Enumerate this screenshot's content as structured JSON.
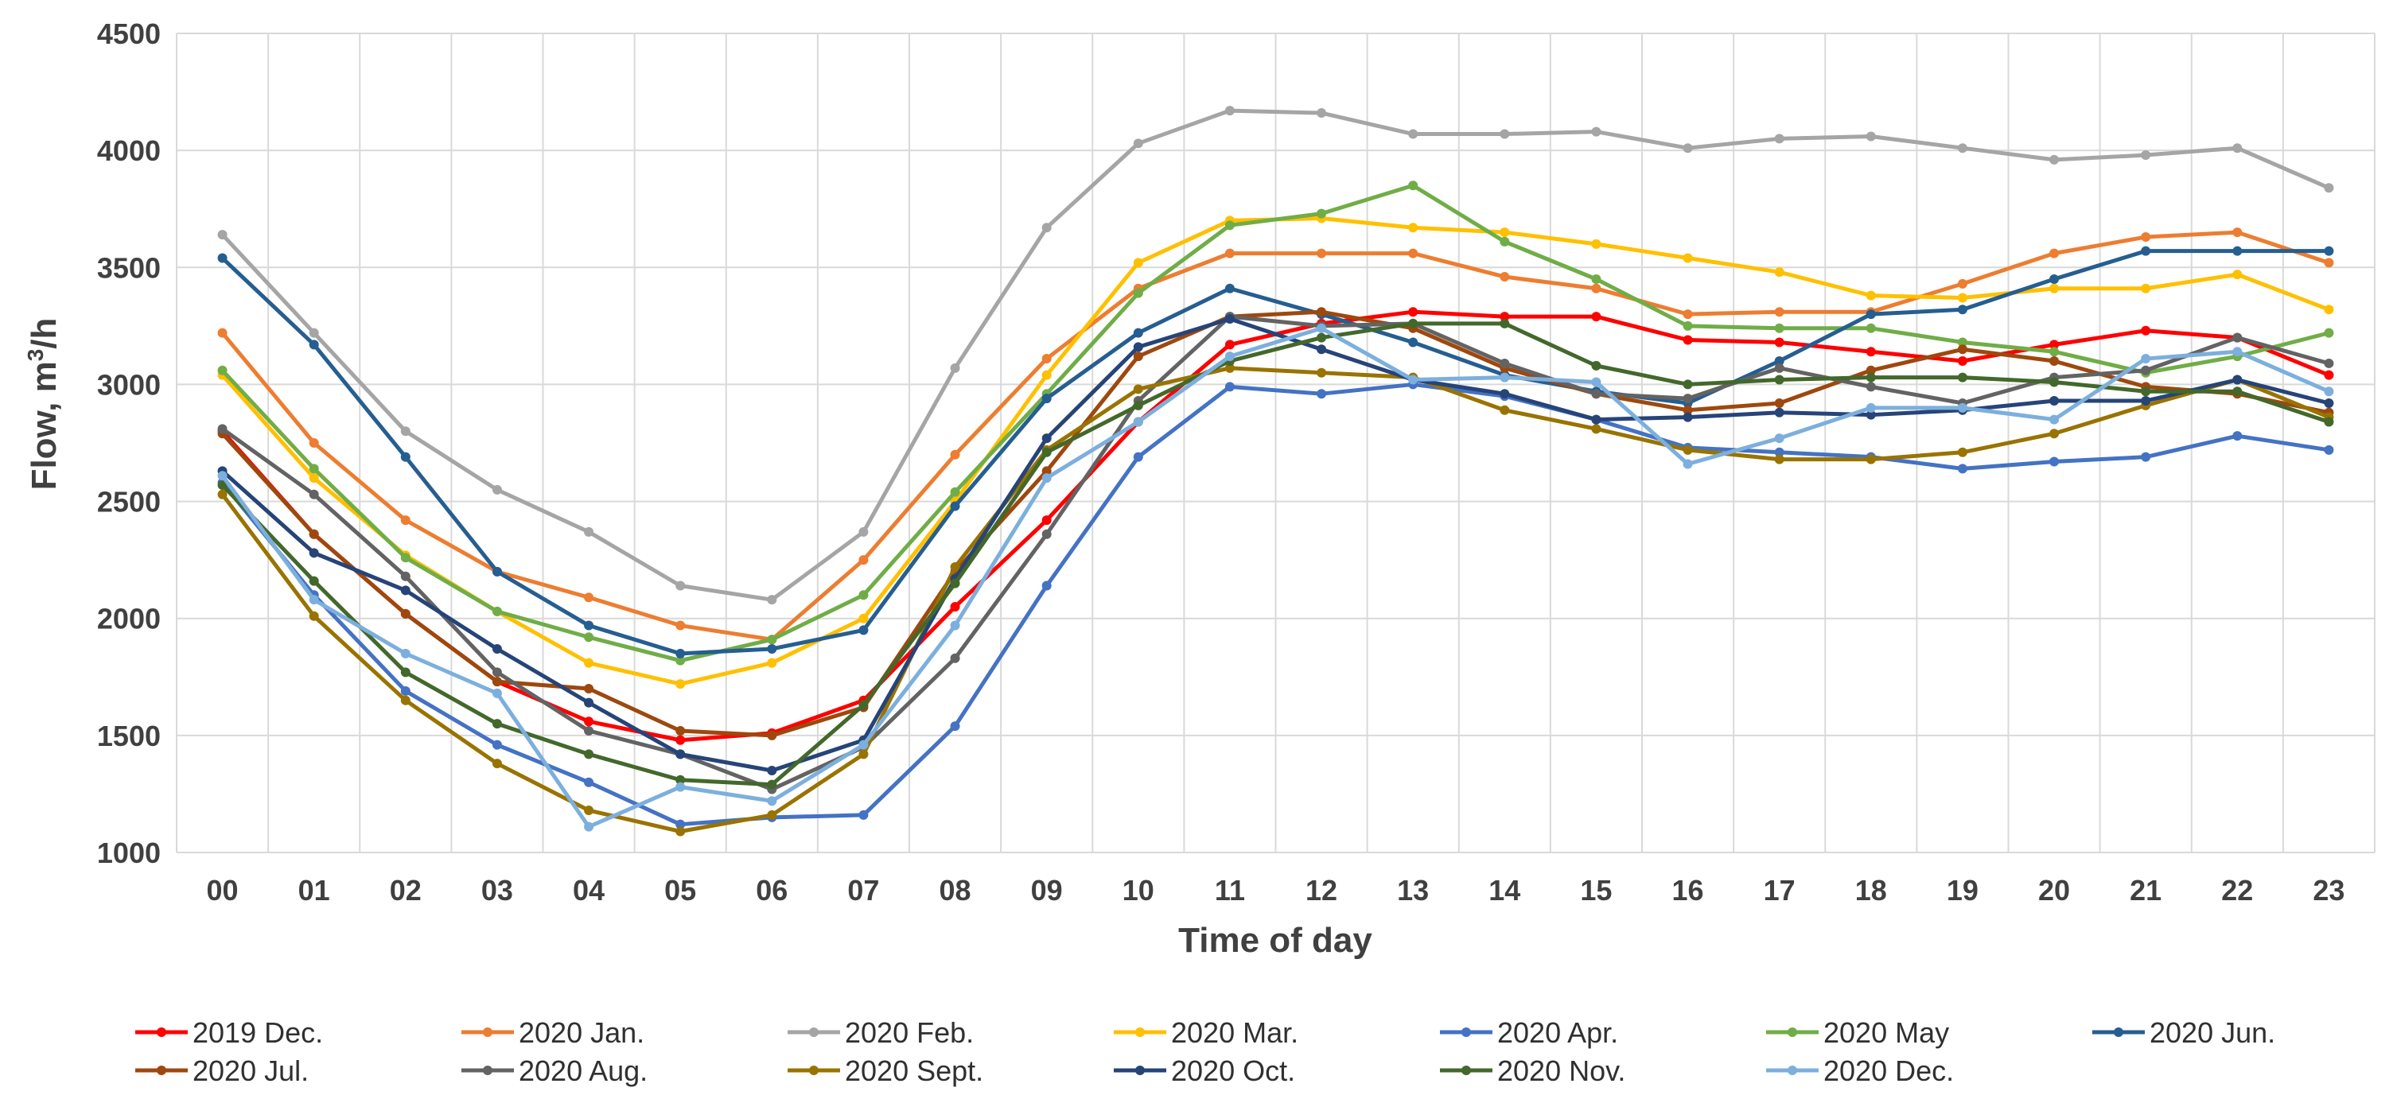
{
  "chart_data": {
    "type": "line",
    "title": "",
    "xlabel": "Time of day",
    "ylabel": "Flow, m³/h",
    "ylabel_main": "Flow, m",
    "ylabel_sup": "3",
    "ylabel_end": "/h",
    "ylim": [
      1000,
      4500
    ],
    "yticks": [
      1000,
      1500,
      2000,
      2500,
      3000,
      3500,
      4000,
      4500
    ],
    "grid": true,
    "legend_position": "bottom",
    "categories": [
      "00",
      "01",
      "02",
      "03",
      "04",
      "05",
      "06",
      "07",
      "08",
      "09",
      "10",
      "11",
      "12",
      "13",
      "14",
      "15",
      "16",
      "17",
      "18",
      "19",
      "20",
      "21",
      "22",
      "23"
    ],
    "series": [
      {
        "name": "2019 Dec.",
        "color": "#ff0000",
        "values": [
          2800,
          2360,
          2020,
          1730,
          1560,
          1480,
          1510,
          1650,
          2050,
          2420,
          2840,
          3170,
          3260,
          3310,
          3290,
          3290,
          3190,
          3180,
          3140,
          3100,
          3170,
          3230,
          3200,
          3040
        ]
      },
      {
        "name": "2020 Jan.",
        "color": "#ed7d31",
        "values": [
          3220,
          2750,
          2420,
          2200,
          2090,
          1970,
          1910,
          2250,
          2700,
          3110,
          3410,
          3560,
          3560,
          3560,
          3460,
          3410,
          3300,
          3310,
          3310,
          3430,
          3560,
          3630,
          3650,
          3520
        ]
      },
      {
        "name": "2020 Feb.",
        "color": "#a5a5a5",
        "values": [
          3640,
          3220,
          2800,
          2550,
          2370,
          2140,
          2080,
          2370,
          3070,
          3670,
          4030,
          4170,
          4160,
          4070,
          4070,
          4080,
          4010,
          4050,
          4060,
          4010,
          3960,
          3980,
          4010,
          3840
        ]
      },
      {
        "name": "2020 Mar.",
        "color": "#ffc000",
        "values": [
          3040,
          2600,
          2270,
          2030,
          1810,
          1720,
          1810,
          2000,
          2500,
          3040,
          3520,
          3700,
          3710,
          3670,
          3650,
          3600,
          3540,
          3480,
          3380,
          3370,
          3410,
          3410,
          3470,
          3320
        ]
      },
      {
        "name": "2020 Apr.",
        "color": "#4472c4",
        "values": [
          2580,
          2100,
          1690,
          1460,
          1300,
          1120,
          1150,
          1160,
          1540,
          2140,
          2690,
          2990,
          2960,
          3000,
          2950,
          2850,
          2730,
          2710,
          2690,
          2640,
          2670,
          2690,
          2780,
          2720
        ]
      },
      {
        "name": "2020 May",
        "color": "#70ad47",
        "values": [
          3060,
          2640,
          2260,
          2030,
          1920,
          1820,
          1910,
          2100,
          2540,
          2960,
          3390,
          3680,
          3730,
          3850,
          3610,
          3450,
          3250,
          3240,
          3240,
          3180,
          3140,
          3050,
          3120,
          3220
        ]
      },
      {
        "name": "2020 Jun.",
        "color": "#255e91",
        "values": [
          3540,
          3170,
          2690,
          2200,
          1970,
          1850,
          1870,
          1950,
          2480,
          2940,
          3220,
          3410,
          3300,
          3180,
          3040,
          2970,
          2920,
          3100,
          3300,
          3320,
          3450,
          3570,
          3570,
          3570
        ]
      },
      {
        "name": "2020 Jul.",
        "color": "#9e480e",
        "values": [
          2790,
          2360,
          2020,
          1730,
          1700,
          1520,
          1500,
          1620,
          2200,
          2630,
          3120,
          3290,
          3310,
          3240,
          3070,
          2960,
          2890,
          2920,
          3060,
          3150,
          3100,
          2990,
          2960,
          2880
        ]
      },
      {
        "name": "2020 Aug.",
        "color": "#636363",
        "values": [
          2810,
          2530,
          2180,
          1770,
          1520,
          1420,
          1270,
          1450,
          1830,
          2360,
          2930,
          3290,
          3250,
          3260,
          3090,
          2960,
          2940,
          3070,
          2990,
          2920,
          3030,
          3060,
          3200,
          3090
        ]
      },
      {
        "name": "2020 Sept.",
        "color": "#997300",
        "values": [
          2530,
          2010,
          1650,
          1380,
          1180,
          1090,
          1160,
          1420,
          2220,
          2720,
          2980,
          3070,
          3050,
          3030,
          2890,
          2810,
          2720,
          2680,
          2680,
          2710,
          2790,
          2910,
          3020,
          2860
        ]
      },
      {
        "name": "2020 Oct.",
        "color": "#264478",
        "values": [
          2630,
          2280,
          2120,
          1870,
          1640,
          1420,
          1350,
          1480,
          2170,
          2770,
          3160,
          3280,
          3150,
          3020,
          2960,
          2850,
          2860,
          2880,
          2870,
          2890,
          2930,
          2930,
          3020,
          2920
        ]
      },
      {
        "name": "2020 Nov.",
        "color": "#43682b",
        "values": [
          2570,
          2160,
          1770,
          1550,
          1420,
          1310,
          1290,
          1630,
          2150,
          2710,
          2910,
          3100,
          3200,
          3260,
          3260,
          3080,
          3000,
          3020,
          3030,
          3030,
          3010,
          2970,
          2970,
          2840
        ]
      },
      {
        "name": "2020 Dec.",
        "color": "#7cafdd",
        "values": [
          2610,
          2080,
          1850,
          1680,
          1110,
          1280,
          1220,
          1460,
          1970,
          2600,
          2840,
          3120,
          3240,
          3020,
          3030,
          3010,
          2660,
          2770,
          2900,
          2900,
          2850,
          3110,
          3140,
          2970
        ]
      }
    ]
  }
}
